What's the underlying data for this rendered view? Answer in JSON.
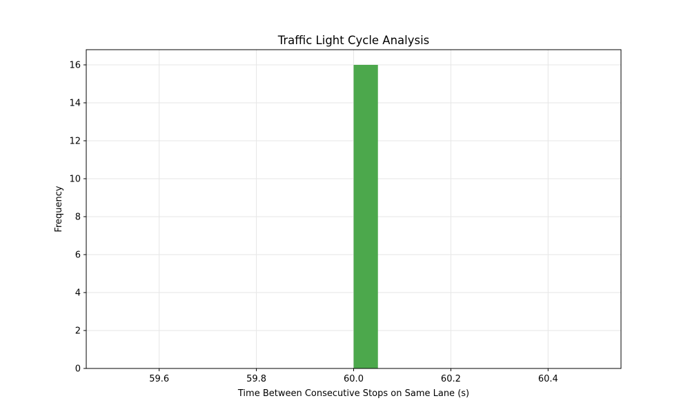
{
  "chart_data": {
    "type": "bar",
    "title": "Traffic Light Cycle Analysis",
    "xlabel": "Time Between Consecutive Stops on Same Lane (s)",
    "ylabel": "Frequency",
    "xlim": [
      59.45,
      60.55
    ],
    "ylim": [
      0,
      16.8
    ],
    "xticks": [
      59.6,
      59.8,
      60.0,
      60.2,
      60.4
    ],
    "xtick_labels": [
      "59.6",
      "59.8",
      "60.0",
      "60.2",
      "60.4"
    ],
    "yticks": [
      0,
      2,
      4,
      6,
      8,
      10,
      12,
      14,
      16
    ],
    "ytick_labels": [
      "0",
      "2",
      "4",
      "6",
      "8",
      "10",
      "12",
      "14",
      "16"
    ],
    "bins": [
      {
        "x0": 60.0,
        "x1": 60.05,
        "value": 16
      }
    ],
    "bar_color": "#4CA84C",
    "grid": true,
    "grid_color": "#e6e6e6"
  }
}
